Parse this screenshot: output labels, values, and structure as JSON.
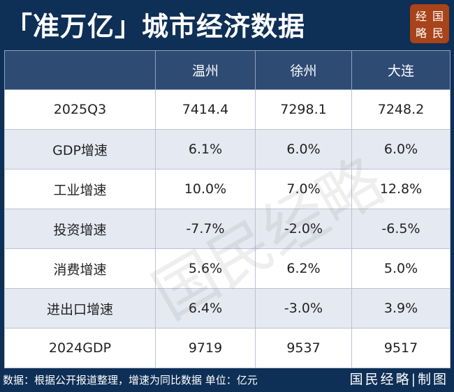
{
  "title": "「准万亿」城市经济数据",
  "logo": [
    "经",
    "国",
    "略",
    "民"
  ],
  "watermark": "国民经略",
  "chart_data": {
    "type": "table",
    "columns": [
      "",
      "温州",
      "徐州",
      "大连"
    ],
    "rows": [
      [
        "2025Q3",
        "7414.4",
        "7298.1",
        "7248.2"
      ],
      [
        "GDP增速",
        "6.1%",
        "6.0%",
        "6.0%"
      ],
      [
        "工业增速",
        "10.0%",
        "7.0%",
        "12.8%"
      ],
      [
        "投资增速",
        "-7.7%",
        "-2.0%",
        "-6.5%"
      ],
      [
        "消费增速",
        "5.6%",
        "6.2%",
        "5.0%"
      ],
      [
        "进出口增速",
        "6.4%",
        "-3.0%",
        "3.9%"
      ],
      [
        "2024GDP",
        "9719",
        "9537",
        "9517"
      ]
    ]
  },
  "footer": {
    "note": "数据：根据公开报道整理，增速为同比数据 单位：亿元",
    "brand": "国民经略|制图"
  },
  "colors": {
    "background": "#0e2f56",
    "header": "#2e4b74",
    "stripe": "#e5e9f1",
    "logo": "#a8431a"
  }
}
